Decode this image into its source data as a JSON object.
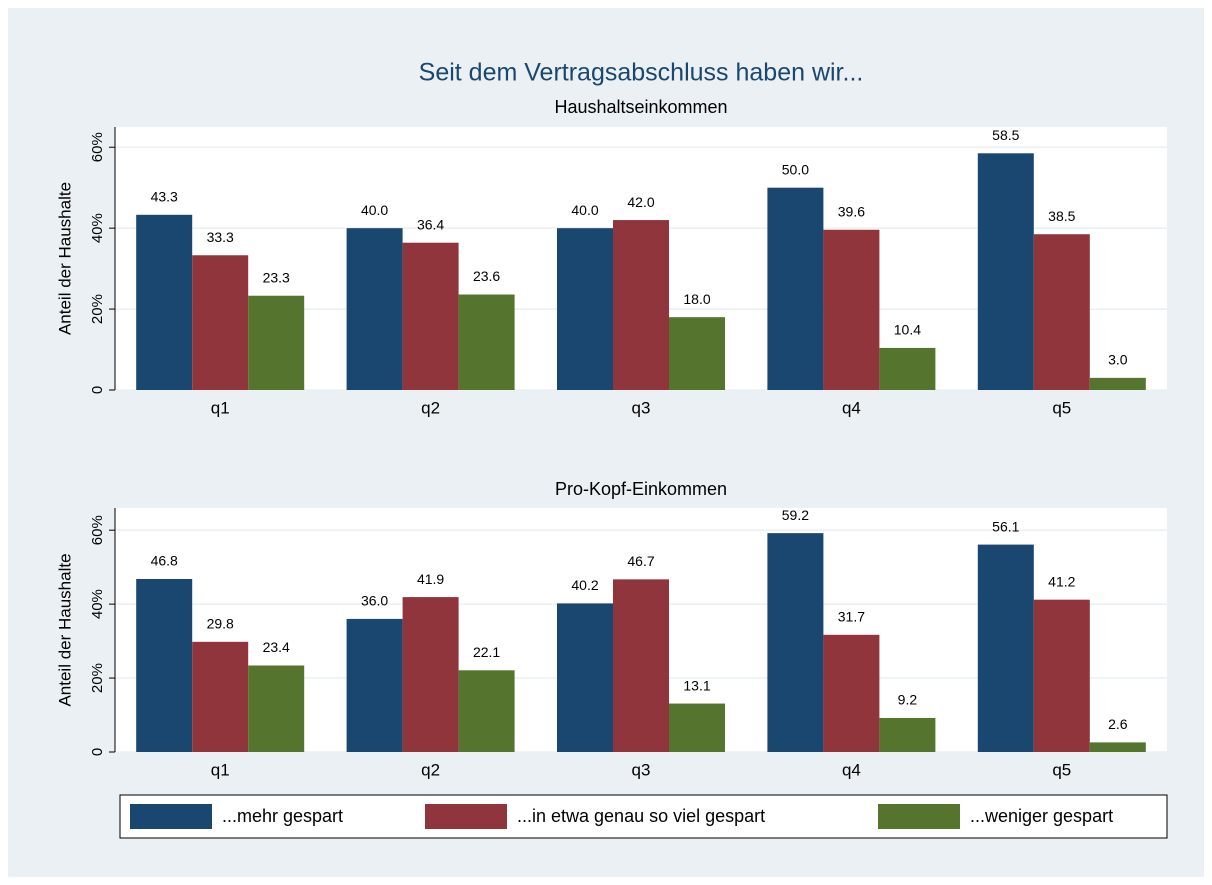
{
  "title": "Seit dem Vertragsabschluss haben wir...",
  "chart_data": [
    {
      "type": "bar",
      "subtitle": "Haushaltseinkommen",
      "ylabel": "Anteil der Haushalte",
      "categories": [
        "q1",
        "q2",
        "q3",
        "q4",
        "q5"
      ],
      "series": [
        {
          "name": "...mehr gespart",
          "color": "#1a476f",
          "values": [
            43.3,
            40,
            40,
            50,
            58.5
          ],
          "value_labels": [
            "43.3",
            "40.0",
            "40.0",
            "50.0",
            "58.5"
          ]
        },
        {
          "name": "...in etwa genau so viel gespart",
          "color": "#90353b",
          "values": [
            33.3,
            36.4,
            42,
            39.6,
            38.5
          ],
          "value_labels": [
            "33.3",
            "36.4",
            "42.0",
            "39.6",
            "38.5"
          ]
        },
        {
          "name": "...weniger gespart",
          "color": "#55752f",
          "values": [
            23.3,
            23.6,
            18,
            10.4,
            3
          ],
          "value_labels": [
            "23.3",
            "23.6",
            "18.0",
            "10.4",
            "3.0"
          ]
        }
      ],
      "ylim": [
        0,
        65
      ],
      "yticks": [
        0,
        {
          "value": 20,
          "label": "20%"
        },
        {
          "value": 40,
          "label": "40%"
        },
        {
          "value": 60,
          "label": "60%"
        }
      ],
      "grid": true
    },
    {
      "type": "bar",
      "subtitle": "Pro-Kopf-Einkommen",
      "ylabel": "Anteil der Haushalte",
      "categories": [
        "q1",
        "q2",
        "q3",
        "q4",
        "q5"
      ],
      "series": [
        {
          "color": "#1a476f",
          "values": [
            46.8,
            36,
            40.2,
            59.2,
            56.1
          ],
          "value_labels": [
            "46.8",
            "36.0",
            "40.2",
            "59.2",
            "56.1"
          ]
        },
        {
          "color": "#90353b",
          "values": [
            29.8,
            41.9,
            46.7,
            31.7,
            41.2
          ],
          "value_labels": [
            "29.8",
            "41.9",
            "46.7",
            "31.7",
            "41.2"
          ]
        },
        {
          "color": "#55752f",
          "values": [
            23.4,
            22.1,
            13.1,
            9.2,
            2.6
          ],
          "value_labels": [
            "23.4",
            "22.1",
            "13.1",
            "9.2",
            "2.6"
          ]
        }
      ],
      "ylim": [
        0,
        66
      ],
      "yticks": [
        0,
        {
          "value": 20,
          "label": "20%"
        },
        {
          "value": 40,
          "label": "40%"
        },
        {
          "value": 60,
          "label": "60%"
        }
      ],
      "grid": true
    }
  ]
}
